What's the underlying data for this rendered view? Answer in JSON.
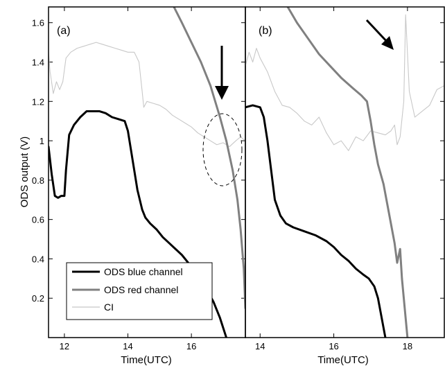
{
  "figure": {
    "ylabel": "ODS output (V)",
    "xlabel": "Time(UTC)"
  },
  "chart_data": [
    {
      "type": "line",
      "panel_label": "(a)",
      "xlabel": "Time(UTC)",
      "ylabel": "ODS output (V)",
      "xlim": [
        11.5,
        17.7
      ],
      "ylim": [
        0.0,
        1.68
      ],
      "xticks": [
        12,
        14,
        16
      ],
      "yticks": [
        0.2,
        0.4,
        0.6,
        0.8,
        1.0,
        1.2,
        1.4,
        1.6
      ],
      "ytick_labels": [
        "0.2",
        "0.4",
        "0.6",
        "0.8",
        "1",
        "1.2",
        "1.4",
        "1.6"
      ],
      "legend": {
        "location": "lower-left",
        "entries": [
          "ODS blue channel",
          "ODS red channel",
          "CI"
        ]
      },
      "annotations": [
        {
          "type": "arrow",
          "direction": "down",
          "near_x": 17.1,
          "near_y": 1.3
        },
        {
          "type": "dashed-ellipse",
          "center_x": 17.1,
          "center_y": 0.95
        }
      ],
      "series": [
        {
          "name": "ODS blue channel",
          "color": "#000000",
          "x": [
            11.5,
            11.6,
            11.7,
            11.8,
            11.9,
            12.0,
            12.05,
            12.15,
            12.3,
            12.5,
            12.7,
            12.9,
            13.1,
            13.3,
            13.5,
            13.7,
            13.9,
            14.0,
            14.1,
            14.2,
            14.3,
            14.45,
            14.55,
            14.7,
            14.9,
            15.1,
            15.3,
            15.5,
            15.7,
            15.9,
            16.1,
            16.3,
            16.5,
            16.7,
            16.9,
            17.1
          ],
          "y": [
            0.97,
            0.83,
            0.72,
            0.71,
            0.72,
            0.72,
            0.85,
            1.03,
            1.08,
            1.12,
            1.15,
            1.15,
            1.15,
            1.14,
            1.12,
            1.11,
            1.1,
            1.05,
            0.95,
            0.85,
            0.75,
            0.65,
            0.61,
            0.58,
            0.55,
            0.51,
            0.48,
            0.45,
            0.42,
            0.38,
            0.35,
            0.3,
            0.24,
            0.18,
            0.1,
            0.0
          ]
        },
        {
          "name": "ODS red channel",
          "color": "#808080",
          "x": [
            15.45,
            15.7,
            16.0,
            16.3,
            16.6,
            16.9,
            17.1,
            17.3,
            17.45,
            17.55,
            17.65,
            17.7
          ],
          "y": [
            1.68,
            1.6,
            1.5,
            1.4,
            1.28,
            1.12,
            1.0,
            0.85,
            0.7,
            0.55,
            0.35,
            0.15
          ]
        },
        {
          "name": "CI",
          "color": "#c8c8c8",
          "x": [
            11.5,
            11.55,
            11.65,
            11.75,
            11.85,
            11.95,
            12.05,
            12.2,
            12.4,
            12.6,
            12.8,
            13.0,
            13.2,
            13.4,
            13.6,
            13.8,
            14.0,
            14.2,
            14.35,
            14.45,
            14.5,
            14.6,
            14.8,
            15.0,
            15.2,
            15.4,
            15.6,
            15.8,
            16.0,
            16.2,
            16.4,
            16.6,
            16.8,
            17.0,
            17.2,
            17.4,
            17.55,
            17.7
          ],
          "y": [
            1.45,
            1.35,
            1.24,
            1.3,
            1.26,
            1.3,
            1.42,
            1.45,
            1.47,
            1.48,
            1.49,
            1.5,
            1.49,
            1.48,
            1.47,
            1.46,
            1.45,
            1.45,
            1.4,
            1.25,
            1.17,
            1.2,
            1.19,
            1.18,
            1.16,
            1.13,
            1.11,
            1.09,
            1.07,
            1.04,
            1.02,
            1.0,
            0.98,
            0.99,
            0.97,
            1.0,
            1.02,
            1.0
          ]
        }
      ]
    },
    {
      "type": "line",
      "panel_label": "(b)",
      "xlabel": "Time(UTC)",
      "xlim": [
        13.6,
        19.0
      ],
      "ylim": [
        0.0,
        1.68
      ],
      "xticks": [
        14,
        16,
        18
      ],
      "legend": null,
      "annotations": [
        {
          "type": "arrow",
          "direction": "down-right",
          "near_x": 17.6,
          "near_y": 1.55
        }
      ],
      "series": [
        {
          "name": "ODS blue channel",
          "color": "#000000",
          "x": [
            13.6,
            13.8,
            14.0,
            14.1,
            14.2,
            14.3,
            14.4,
            14.55,
            14.7,
            14.9,
            15.2,
            15.5,
            15.8,
            16.0,
            16.2,
            16.4,
            16.6,
            16.8,
            16.95,
            17.1,
            17.2,
            17.3,
            17.4
          ],
          "y": [
            1.17,
            1.18,
            1.17,
            1.12,
            1.0,
            0.85,
            0.7,
            0.62,
            0.58,
            0.56,
            0.54,
            0.52,
            0.49,
            0.46,
            0.42,
            0.39,
            0.35,
            0.32,
            0.3,
            0.26,
            0.2,
            0.1,
            0.0
          ]
        },
        {
          "name": "ODS red channel",
          "color": "#808080",
          "x": [
            14.75,
            15.0,
            15.3,
            15.6,
            15.9,
            16.2,
            16.5,
            16.75,
            16.9,
            17.0,
            17.1,
            17.2,
            17.35,
            17.45,
            17.55,
            17.65,
            17.72,
            17.8,
            17.85,
            17.9,
            17.95,
            18.0
          ],
          "y": [
            1.68,
            1.6,
            1.52,
            1.44,
            1.38,
            1.32,
            1.27,
            1.23,
            1.2,
            1.1,
            0.98,
            0.88,
            0.78,
            0.68,
            0.58,
            0.48,
            0.38,
            0.45,
            0.3,
            0.2,
            0.1,
            0.0
          ]
        },
        {
          "name": "CI",
          "color": "#c8c8c8",
          "x": [
            13.6,
            13.7,
            13.8,
            13.9,
            14.0,
            14.2,
            14.4,
            14.6,
            14.8,
            15.0,
            15.2,
            15.4,
            15.6,
            15.8,
            16.0,
            16.2,
            16.4,
            16.6,
            16.8,
            17.0,
            17.2,
            17.4,
            17.55,
            17.65,
            17.72,
            17.8,
            17.9,
            17.95,
            18.05,
            18.2,
            18.4,
            18.6,
            18.8,
            19.0
          ],
          "y": [
            1.38,
            1.45,
            1.4,
            1.47,
            1.42,
            1.35,
            1.25,
            1.18,
            1.17,
            1.14,
            1.1,
            1.08,
            1.12,
            1.04,
            0.98,
            1.0,
            0.95,
            1.02,
            1.0,
            1.05,
            1.04,
            1.03,
            1.05,
            1.08,
            0.98,
            1.02,
            1.2,
            1.64,
            1.25,
            1.12,
            1.15,
            1.18,
            1.26,
            1.28
          ]
        }
      ]
    }
  ]
}
